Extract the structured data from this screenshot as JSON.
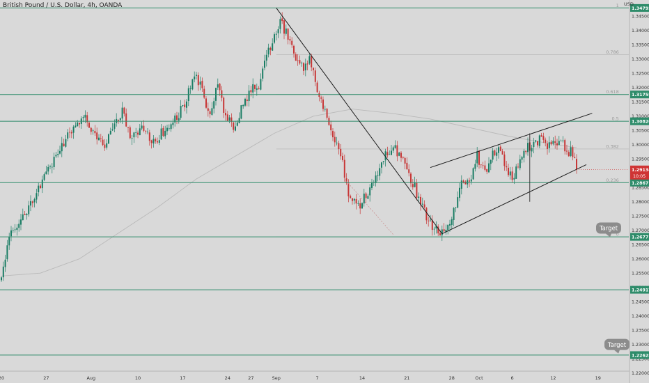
{
  "header": {
    "title": "British Pound / U.S. Dollar, 4h, OANDA",
    "currency": "USD"
  },
  "colors": {
    "up": "#1a7d64",
    "down": "#c73737",
    "level": "#2e8c6a",
    "bg": "#d9d9d9",
    "ma": "#b9b9b9",
    "fib": "#b2b2b2",
    "current": "#cf3434",
    "trend": "#1b1b1b"
  },
  "chart_data": {
    "type": "candlestick",
    "symbol": "GBPUSD",
    "timeframe": "4h",
    "ylim": [
      1.2165,
      1.3507
    ],
    "y_ticks": [
      1.345,
      1.34,
      1.335,
      1.33,
      1.325,
      1.32,
      1.315,
      1.31,
      1.305,
      1.3,
      1.295,
      1.29,
      1.285,
      1.28,
      1.275,
      1.27,
      1.265,
      1.26,
      1.255,
      1.25,
      1.245,
      1.24,
      1.235,
      1.23,
      1.225,
      1.22
    ],
    "x_ticks": [
      {
        "label": "20",
        "i": 0
      },
      {
        "label": "27",
        "i": 23
      },
      {
        "label": "Aug",
        "i": 46
      },
      {
        "label": "10",
        "i": 70
      },
      {
        "label": "17",
        "i": 93
      },
      {
        "label": "24",
        "i": 116
      },
      {
        "label": "27",
        "i": 128
      },
      {
        "label": "Sep",
        "i": 141
      },
      {
        "label": "7",
        "i": 162
      },
      {
        "label": "14",
        "i": 185
      },
      {
        "label": "21",
        "i": 208
      },
      {
        "label": "28",
        "i": 231
      },
      {
        "label": "Oct",
        "i": 245
      },
      {
        "label": "6",
        "i": 262
      },
      {
        "label": "12",
        "i": 283
      },
      {
        "label": "19",
        "i": 306
      }
    ],
    "n_bars": 296,
    "anchors": [
      [
        0,
        1.2525
      ],
      [
        4,
        1.269
      ],
      [
        12,
        1.276
      ],
      [
        22,
        1.288
      ],
      [
        30,
        1.299
      ],
      [
        38,
        1.307
      ],
      [
        42,
        1.311
      ],
      [
        48,
        1.303
      ],
      [
        53,
        1.3
      ],
      [
        58,
        1.3075
      ],
      [
        62,
        1.3115
      ],
      [
        66,
        1.303
      ],
      [
        72,
        1.306
      ],
      [
        78,
        1.301
      ],
      [
        82,
        1.304
      ],
      [
        88,
        1.308
      ],
      [
        94,
        1.314
      ],
      [
        99,
        1.324
      ],
      [
        103,
        1.319
      ],
      [
        107,
        1.31
      ],
      [
        111,
        1.321
      ],
      [
        115,
        1.31
      ],
      [
        119,
        1.306
      ],
      [
        124,
        1.314
      ],
      [
        128,
        1.319
      ],
      [
        132,
        1.321
      ],
      [
        136,
        1.33
      ],
      [
        139,
        1.337
      ],
      [
        143,
        1.343
      ],
      [
        146,
        1.339
      ],
      [
        150,
        1.332
      ],
      [
        155,
        1.327
      ],
      [
        158,
        1.33
      ],
      [
        162,
        1.319
      ],
      [
        166,
        1.312
      ],
      [
        170,
        1.302
      ],
      [
        174,
        1.296
      ],
      [
        178,
        1.283
      ],
      [
        182,
        1.278
      ],
      [
        186,
        1.281
      ],
      [
        192,
        1.289
      ],
      [
        196,
        1.296
      ],
      [
        200,
        1.299
      ],
      [
        204,
        1.297
      ],
      [
        208,
        1.29
      ],
      [
        212,
        1.285
      ],
      [
        216,
        1.278
      ],
      [
        220,
        1.272
      ],
      [
        224,
        1.269
      ],
      [
        228,
        1.272
      ],
      [
        232,
        1.276
      ],
      [
        236,
        1.287
      ],
      [
        240,
        1.286
      ],
      [
        244,
        1.296
      ],
      [
        248,
        1.29
      ],
      [
        252,
        1.297
      ],
      [
        256,
        1.299
      ],
      [
        259,
        1.291
      ],
      [
        262,
        1.288
      ],
      [
        266,
        1.295
      ],
      [
        270,
        1.299
      ],
      [
        274,
        1.301
      ],
      [
        278,
        1.303
      ],
      [
        281,
        1.299
      ],
      [
        284,
        1.301
      ],
      [
        288,
        1.303
      ],
      [
        290,
        1.296
      ],
      [
        292,
        1.298
      ],
      [
        295,
        1.2914
      ]
    ],
    "series": [
      {
        "name": "moving_average",
        "values": [
          [
            0,
            1.254
          ],
          [
            20,
            1.255
          ],
          [
            40,
            1.26
          ],
          [
            60,
            1.269
          ],
          [
            80,
            1.278
          ],
          [
            100,
            1.288
          ],
          [
            120,
            1.296
          ],
          [
            140,
            1.304
          ],
          [
            160,
            1.31
          ],
          [
            180,
            1.3125
          ],
          [
            200,
            1.311
          ],
          [
            220,
            1.309
          ],
          [
            240,
            1.306
          ],
          [
            260,
            1.303
          ],
          [
            280,
            1.3005
          ],
          [
            295,
            1.299
          ]
        ]
      }
    ],
    "horizontal_levels": [
      {
        "value": 1.34792,
        "label": "1.34792"
      },
      {
        "value": 1.31759,
        "label": "1.31759"
      },
      {
        "value": 1.3082,
        "label": "1.30820"
      },
      {
        "value": 1.28671,
        "label": "1.28671"
      },
      {
        "value": 1.26771,
        "label": "1.26771"
      },
      {
        "value": 1.24917,
        "label": "1.24917"
      },
      {
        "value": 1.22628,
        "label": "1.22628"
      }
    ],
    "fib_levels": [
      {
        "label": "1",
        "value": 1.34792
      },
      {
        "label": "0.786",
        "value": 1.3316
      },
      {
        "label": "0.618",
        "value": 1.31759
      },
      {
        "label": "0.5",
        "value": 1.3082
      },
      {
        "label": "0.382",
        "value": 1.2985
      },
      {
        "label": "0.236",
        "value": 1.28671
      },
      {
        "label": "0",
        "value": 1.26771
      }
    ],
    "trendlines": [
      {
        "from": [
          141,
          1.3479
        ],
        "to": [
          226,
          1.2688
        ]
      },
      {
        "from": [
          220,
          1.292
        ],
        "to": [
          303,
          1.311
        ]
      },
      {
        "from": [
          226,
          1.2688
        ],
        "to": [
          300,
          1.293
        ]
      }
    ],
    "current_price": {
      "value": 1.29134,
      "label": "1.29134",
      "countdown": "10:05"
    },
    "annotations": [
      {
        "text": "Target",
        "value": 1.2708
      },
      {
        "text": "Target",
        "value": 1.23
      }
    ]
  }
}
